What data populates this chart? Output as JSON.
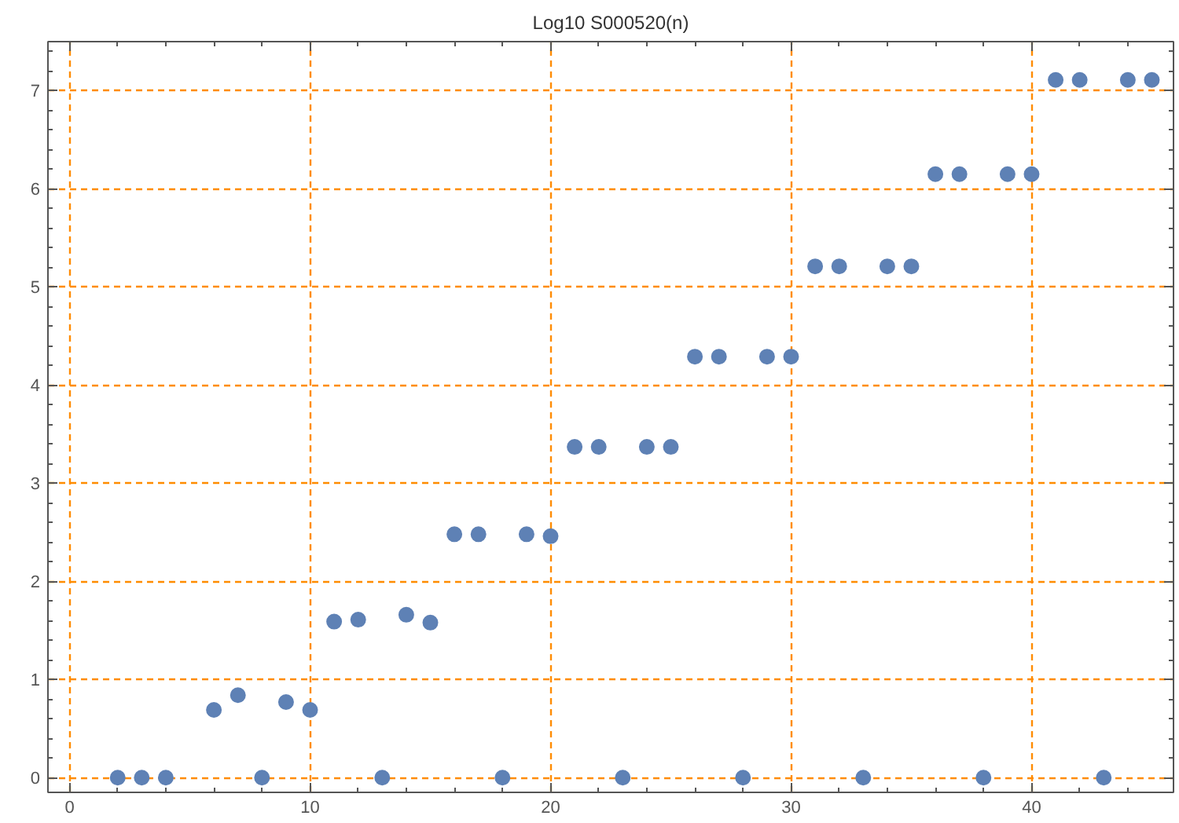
{
  "chart_data": {
    "type": "scatter",
    "title": "Log10 S000520(n)",
    "x": [
      2,
      3,
      4,
      6,
      7,
      8,
      9,
      10,
      11,
      12,
      13,
      14,
      15,
      16,
      17,
      18,
      19,
      20,
      21,
      22,
      23,
      24,
      25,
      26,
      27,
      28,
      29,
      30,
      31,
      32,
      33,
      34,
      35,
      36,
      37,
      38,
      39,
      40,
      41,
      42,
      43,
      44,
      45
    ],
    "series": [
      {
        "color": "#5e81b5",
        "values": [
          0,
          0,
          0,
          0.69,
          0.84,
          0,
          0.77,
          0.69,
          1.59,
          1.61,
          0,
          1.66,
          1.58,
          2.48,
          2.48,
          0,
          2.48,
          2.46,
          3.37,
          3.37,
          0,
          3.37,
          3.37,
          4.29,
          4.29,
          0,
          4.29,
          4.29,
          5.21,
          5.21,
          0,
          5.21,
          5.21,
          6.15,
          6.15,
          0,
          6.15,
          6.15,
          7.11,
          7.11,
          0,
          7.11,
          7.11
        ]
      }
    ],
    "xlim": [
      -0.9,
      45.9
    ],
    "ylim": [
      -0.15,
      7.5
    ],
    "xticks": [
      0,
      10,
      20,
      30,
      40
    ],
    "yticks": [
      0,
      1,
      2,
      3,
      4,
      5,
      6,
      7
    ],
    "grid": true,
    "marker": "circle"
  }
}
